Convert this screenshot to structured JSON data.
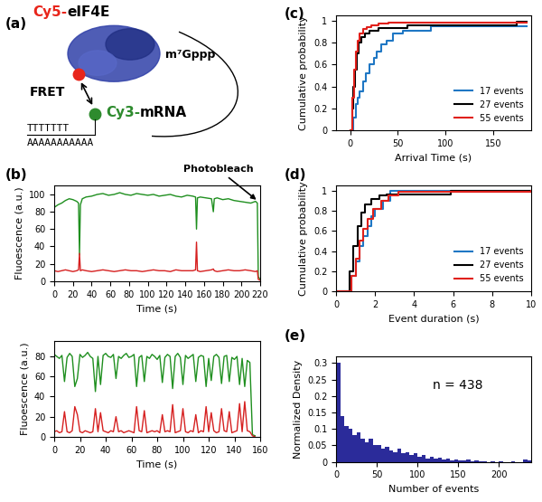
{
  "diagram": {
    "panel_label": "(a)",
    "protein": {
      "dye": "Cy5-",
      "name": "eIF4E",
      "dye_color": "#e8251b",
      "color": "#3040a8"
    },
    "cap": "m⁷Gppp",
    "fret": "FRET",
    "mrna": {
      "dye": "Cy3-",
      "name": "mRNA",
      "dye_color": "#2e8b2e"
    },
    "oligo_t": "TTTTTTT",
    "poly_a": "AAAAAAAAAAA"
  },
  "chart_data": [
    {
      "type": "line",
      "panel_label": "(b)",
      "x_label": "Time (s)",
      "y_label": "Fluoescence (a.u.)",
      "x": [
        0,
        4,
        8,
        12,
        16,
        20,
        24,
        26,
        27,
        28,
        30,
        34,
        40,
        46,
        52,
        58,
        64,
        70,
        76,
        82,
        88,
        94,
        100,
        106,
        112,
        118,
        124,
        130,
        136,
        142,
        148,
        151,
        152,
        153,
        156,
        162,
        168,
        170,
        171,
        174,
        180,
        186,
        192,
        198,
        204,
        210,
        215,
        217,
        218,
        220
      ],
      "series": [
        {
          "color": "#1f8f1f",
          "values": [
            85,
            88,
            90,
            93,
            95,
            94,
            92,
            90,
            30,
            88,
            95,
            97,
            98,
            100,
            101,
            99,
            100,
            102,
            100,
            99,
            101,
            100,
            99,
            100,
            98,
            99,
            100,
            98,
            97,
            99,
            98,
            97,
            60,
            96,
            97,
            96,
            95,
            80,
            95,
            96,
            94,
            95,
            93,
            92,
            91,
            90,
            92,
            90,
            5,
            2
          ]
        },
        {
          "color": "#d62020",
          "values": [
            12,
            11,
            12,
            13,
            12,
            11,
            12,
            13,
            32,
            12,
            13,
            12,
            11,
            12,
            13,
            12,
            11,
            12,
            13,
            12,
            12,
            11,
            12,
            13,
            12,
            12,
            11,
            13,
            12,
            12,
            12,
            13,
            45,
            12,
            11,
            12,
            13,
            14,
            12,
            11,
            12,
            13,
            12,
            12,
            13,
            12,
            11,
            12,
            2,
            1
          ]
        }
      ],
      "xlim": [
        0,
        220
      ],
      "xticks": [
        0,
        20,
        40,
        60,
        80,
        100,
        120,
        140,
        160,
        180,
        200,
        220
      ],
      "ylim": [
        0,
        110
      ],
      "yticks": [
        0,
        20,
        40,
        60,
        80,
        100
      ],
      "annotations": [
        {
          "text": "Photobleach",
          "x": 218,
          "y": 92
        }
      ]
    },
    {
      "type": "line",
      "x_label": "Time (s)",
      "y_label": "Fluoescence (a.u.)",
      "x": [
        0,
        2,
        4,
        6,
        8,
        10,
        12,
        14,
        16,
        18,
        20,
        22,
        24,
        26,
        28,
        30,
        32,
        34,
        36,
        38,
        40,
        42,
        44,
        46,
        48,
        50,
        52,
        54,
        56,
        58,
        60,
        62,
        64,
        66,
        68,
        70,
        72,
        74,
        76,
        78,
        80,
        82,
        84,
        86,
        88,
        90,
        92,
        94,
        96,
        98,
        100,
        102,
        104,
        106,
        108,
        110,
        112,
        114,
        116,
        118,
        120,
        122,
        124,
        126,
        128,
        130,
        132,
        134,
        136,
        138,
        140,
        142,
        144,
        146,
        148,
        150,
        152,
        154,
        156,
        158,
        160
      ],
      "series": [
        {
          "color": "#1f8f1f",
          "values": [
            82,
            80,
            78,
            81,
            55,
            79,
            83,
            80,
            50,
            58,
            82,
            79,
            81,
            84,
            80,
            78,
            45,
            80,
            52,
            81,
            83,
            80,
            79,
            82,
            58,
            80,
            78,
            81,
            83,
            79,
            80,
            82,
            50,
            79,
            81,
            55,
            80,
            78,
            82,
            80,
            77,
            81,
            54,
            79,
            82,
            80,
            48,
            80,
            83,
            79,
            52,
            81,
            78,
            80,
            82,
            55,
            79,
            81,
            80,
            50,
            78,
            56,
            80,
            82,
            79,
            53,
            80,
            81,
            55,
            79,
            77,
            80,
            52,
            78,
            50,
            76,
            74,
            2,
            1,
            null,
            null
          ]
        },
        {
          "color": "#d62020",
          "values": [
            5,
            6,
            4,
            5,
            25,
            5,
            4,
            6,
            30,
            22,
            5,
            4,
            6,
            5,
            4,
            5,
            28,
            5,
            24,
            6,
            5,
            4,
            6,
            5,
            20,
            5,
            6,
            4,
            5,
            6,
            5,
            4,
            30,
            6,
            5,
            26,
            4,
            5,
            6,
            5,
            6,
            4,
            22,
            5,
            6,
            5,
            32,
            4,
            5,
            6,
            28,
            5,
            4,
            6,
            5,
            22,
            4,
            6,
            5,
            30,
            5,
            24,
            6,
            4,
            5,
            28,
            6,
            5,
            25,
            4,
            5,
            6,
            33,
            5,
            35,
            6,
            5,
            1,
            0,
            null,
            null
          ]
        }
      ],
      "xlim": [
        0,
        160
      ],
      "xticks": [
        0,
        20,
        40,
        60,
        80,
        100,
        120,
        140,
        160
      ],
      "ylim": [
        0,
        95
      ],
      "yticks": [
        0,
        20,
        40,
        60,
        80
      ]
    },
    {
      "type": "line",
      "panel_label": "(c)",
      "x_label": "Arrival Time (s)",
      "y_label": "Cumulative probability",
      "series": [
        {
          "name": "17 events",
          "color": "#1f77c4",
          "line_style": "steps",
          "x": [
            0,
            3,
            6,
            8,
            10,
            13,
            16,
            20,
            25,
            28,
            32,
            38,
            45,
            55,
            85,
            185
          ],
          "values": [
            0,
            0.12,
            0.24,
            0.3,
            0.36,
            0.45,
            0.52,
            0.6,
            0.66,
            0.72,
            0.78,
            0.82,
            0.88,
            0.91,
            0.95,
            0.95
          ]
        },
        {
          "name": "27 events",
          "color": "#000000",
          "line_style": "steps",
          "x": [
            0,
            2,
            3,
            5,
            7,
            9,
            12,
            15,
            20,
            30,
            60,
            175,
            185
          ],
          "values": [
            0,
            0.2,
            0.4,
            0.55,
            0.7,
            0.8,
            0.85,
            0.88,
            0.91,
            0.93,
            0.96,
            0.99,
            0.99
          ]
        },
        {
          "name": "55 events",
          "color": "#e0201b",
          "line_style": "steps",
          "x": [
            0,
            2,
            4,
            6,
            8,
            10,
            13,
            17,
            22,
            30,
            40,
            185
          ],
          "values": [
            0,
            0.3,
            0.55,
            0.72,
            0.82,
            0.88,
            0.92,
            0.94,
            0.96,
            0.97,
            0.98,
            0.98
          ]
        }
      ],
      "xlim": [
        -15,
        190
      ],
      "xticks": [
        0,
        50,
        100,
        150
      ],
      "ylim": [
        0,
        1.05
      ],
      "yticks": [
        0,
        0.2,
        0.4,
        0.6,
        0.8,
        1
      ],
      "legend": "lower right"
    },
    {
      "type": "line",
      "panel_label": "(d)",
      "x_label": "Event duration (s)",
      "y_label": "Cumulative probability",
      "series": [
        {
          "name": "17 events",
          "color": "#1f77c4",
          "line_style": "steps",
          "x": [
            0,
            0.6,
            0.8,
            1.0,
            1.2,
            1.4,
            1.6,
            1.8,
            2.0,
            2.4,
            2.8,
            10
          ],
          "values": [
            0,
            0,
            0.15,
            0.3,
            0.45,
            0.55,
            0.65,
            0.75,
            0.82,
            0.9,
            1,
            1
          ]
        },
        {
          "name": "27 events",
          "color": "#000000",
          "line_style": "steps",
          "x": [
            0,
            0.6,
            0.7,
            0.9,
            1.1,
            1.3,
            1.5,
            1.8,
            2.2,
            2.6,
            5.9,
            10
          ],
          "values": [
            0,
            0,
            0.2,
            0.45,
            0.65,
            0.78,
            0.86,
            0.92,
            0.95,
            0.96,
            1,
            1
          ]
        },
        {
          "name": "55 events",
          "color": "#e0201b",
          "line_style": "steps",
          "x": [
            0,
            0.6,
            0.8,
            1.0,
            1.2,
            1.4,
            1.6,
            1.9,
            2.3,
            2.7,
            3.2,
            10
          ],
          "values": [
            0,
            0,
            0.15,
            0.32,
            0.5,
            0.62,
            0.72,
            0.82,
            0.9,
            0.95,
            0.99,
            1
          ]
        }
      ],
      "xlim": [
        0,
        10
      ],
      "xticks": [
        0,
        2,
        4,
        6,
        8,
        10
      ],
      "ylim": [
        0,
        1.05
      ],
      "yticks": [
        0,
        0.2,
        0.4,
        0.6,
        0.8,
        1
      ],
      "legend": "lower right"
    },
    {
      "type": "histogram",
      "panel_label": "(e)",
      "x_label": "Number of events",
      "y_label": "Normalized Density",
      "color": "#2b2b9a",
      "bins": [
        0,
        5,
        10,
        15,
        20,
        25,
        30,
        35,
        40,
        45,
        50,
        55,
        60,
        65,
        70,
        75,
        80,
        85,
        90,
        95,
        100,
        105,
        110,
        115,
        120,
        125,
        130,
        135,
        140,
        145,
        150,
        155,
        160,
        165,
        170,
        175,
        180,
        185,
        190,
        195,
        200,
        205,
        210,
        215,
        220,
        225,
        230,
        235,
        240
      ],
      "counts": [
        0.3,
        0.14,
        0.11,
        0.1,
        0.08,
        0.09,
        0.07,
        0.06,
        0.07,
        0.05,
        0.05,
        0.04,
        0.045,
        0.035,
        0.03,
        0.04,
        0.025,
        0.03,
        0.02,
        0.025,
        0.015,
        0.02,
        0.01,
        0.015,
        0.01,
        0.012,
        0.008,
        0.01,
        0.005,
        0.008,
        0.005,
        0.004,
        0.006,
        0.003,
        0.004,
        0.002,
        0.003,
        0,
        0.002,
        0,
        0.003,
        0,
        0,
        0.002,
        0,
        0,
        0.008,
        0.004
      ],
      "xlim": [
        0,
        240
      ],
      "xticks": [
        0,
        50,
        100,
        150,
        200
      ],
      "ylim": [
        0,
        0.32
      ],
      "yticks": [
        0,
        0.05,
        0.1,
        0.15,
        0.2,
        0.25,
        0.3
      ],
      "annotations": [
        {
          "text": "n = 438",
          "x": 150,
          "y": 0.22
        }
      ]
    }
  ]
}
